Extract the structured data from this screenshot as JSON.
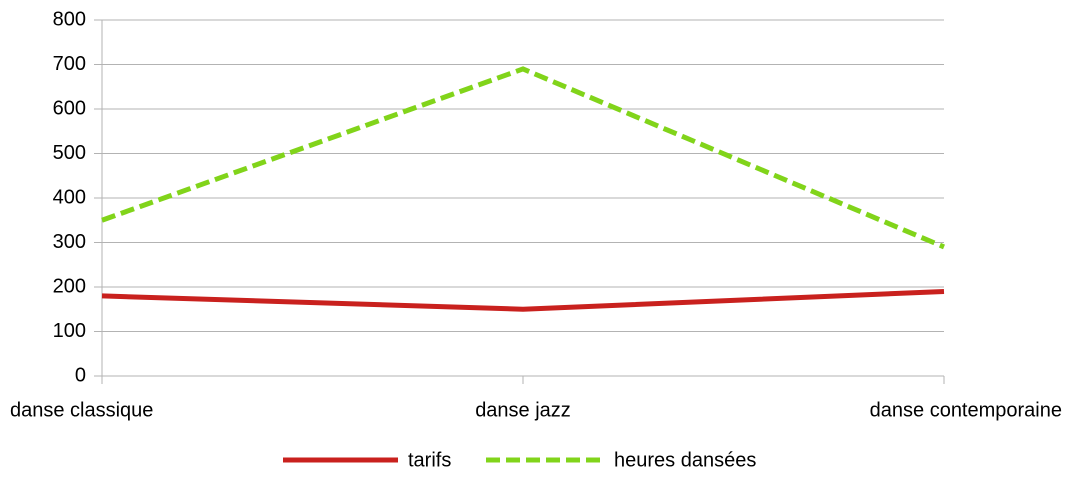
{
  "chart_data": {
    "type": "line",
    "categories": [
      "danse classique",
      "danse jazz",
      "danse contemporaine"
    ],
    "series": [
      {
        "name": "tarifs",
        "color": "#c9211e",
        "dash": false,
        "values": [
          180,
          150,
          190
        ]
      },
      {
        "name": "heures dansées",
        "color": "#81d41a",
        "dash": true,
        "values": [
          350,
          690,
          290
        ]
      }
    ],
    "ylim": [
      0,
      800
    ],
    "yticks": [
      0,
      100,
      200,
      300,
      400,
      500,
      600,
      700,
      800
    ],
    "grid": true,
    "legend": "bottom"
  }
}
